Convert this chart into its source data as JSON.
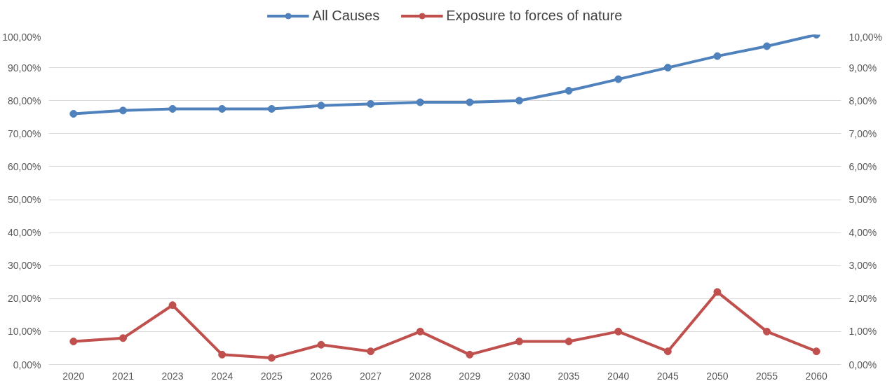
{
  "chart_data": {
    "type": "line",
    "categories": [
      "2020",
      "2021",
      "2023",
      "2024",
      "2025",
      "2026",
      "2027",
      "2028",
      "2029",
      "2030",
      "2035",
      "2040",
      "2045",
      "2050",
      "2055",
      "2060"
    ],
    "series": [
      {
        "name": "All Causes",
        "color": "#4f81bd",
        "values": [
          76,
          77,
          77.5,
          77.5,
          77.5,
          78.5,
          79,
          79.5,
          79.5,
          80,
          83,
          86.5,
          90,
          93.5,
          96.5,
          100
        ]
      },
      {
        "name": "Exposure to forces of nature",
        "color": "#c0504d",
        "axis": "y2",
        "values": [
          0.7,
          0.8,
          1.8,
          0.3,
          0.2,
          0.6,
          0.4,
          1.0,
          0.3,
          0.7,
          0.7,
          1.0,
          0.4,
          2.2,
          1.0,
          0.4
        ]
      }
    ],
    "ylim": [
      0,
      100
    ],
    "yticks": [
      {
        "value": 0,
        "label": "0,00%"
      },
      {
        "value": 10,
        "label": "10,00%"
      },
      {
        "value": 20,
        "label": "20,00%"
      },
      {
        "value": 30,
        "label": "30,00%"
      },
      {
        "value": 40,
        "label": "40,00%"
      },
      {
        "value": 50,
        "label": "50,00%"
      },
      {
        "value": 60,
        "label": "60,00%"
      },
      {
        "value": 70,
        "label": "70,00%"
      },
      {
        "value": 80,
        "label": "80,00%"
      },
      {
        "value": 90,
        "label": "90,00%"
      },
      {
        "value": 100,
        "label": "100,00%"
      }
    ],
    "y2lim": [
      0,
      10
    ],
    "y2ticks": [
      {
        "value": 0,
        "label": "0,00%"
      },
      {
        "value": 1,
        "label": "1,00%"
      },
      {
        "value": 2,
        "label": "2,00%"
      },
      {
        "value": 3,
        "label": "3,00%"
      },
      {
        "value": 4,
        "label": "4,00%"
      },
      {
        "value": 5,
        "label": "5,00%"
      },
      {
        "value": 6,
        "label": "6,00%"
      },
      {
        "value": 7,
        "label": "7,00%"
      },
      {
        "value": 8,
        "label": "8,00%"
      },
      {
        "value": 9,
        "label": "9,00%"
      },
      {
        "value": 10,
        "label": "10,00%"
      }
    ],
    "grid": "y",
    "legend": "top",
    "marker": "circle",
    "line_style": "solid"
  }
}
